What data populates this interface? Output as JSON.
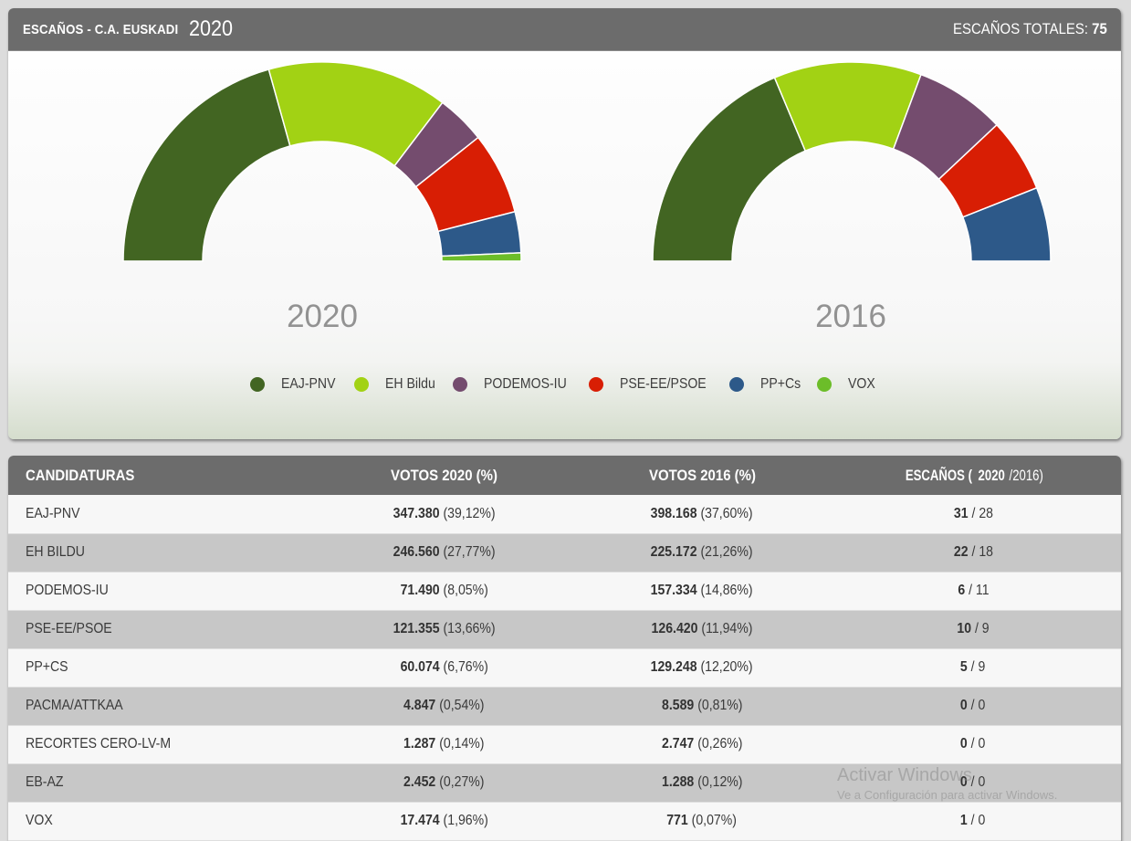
{
  "header": {
    "title": "ESCAÑOS - C.A. EUSKADI",
    "year": "2020",
    "total_label": "ESCAÑOS TOTALES:",
    "total_value": "75"
  },
  "chart_data": [
    {
      "type": "pie",
      "variant": "semicircle-donut",
      "title": "2020",
      "total": 75,
      "categories": [
        "EAJ-PNV",
        "EH Bildu",
        "PODEMOS-IU",
        "PSE-EE/PSOE",
        "PP+Cs",
        "VOX"
      ],
      "values": [
        31,
        22,
        6,
        10,
        5,
        1
      ],
      "colors": [
        "#426522",
        "#a2d214",
        "#744c6e",
        "#d81e04",
        "#2d5989",
        "#6cbd29"
      ]
    },
    {
      "type": "pie",
      "variant": "semicircle-donut",
      "title": "2016",
      "total": 75,
      "categories": [
        "EAJ-PNV",
        "EH Bildu",
        "PODEMOS-IU",
        "PSE-EE/PSOE",
        "PP+Cs",
        "VOX"
      ],
      "values": [
        28,
        18,
        11,
        9,
        9,
        0
      ],
      "colors": [
        "#426522",
        "#a2d214",
        "#744c6e",
        "#d81e04",
        "#2d5989",
        "#6cbd29"
      ]
    }
  ],
  "legend": [
    {
      "label": "EAJ-PNV",
      "color": "#426522"
    },
    {
      "label": "EH Bildu",
      "color": "#a2d214"
    },
    {
      "label": "PODEMOS-IU",
      "color": "#744c6e"
    },
    {
      "label": "PSE-EE/PSOE",
      "color": "#d81e04"
    },
    {
      "label": "PP+Cs",
      "color": "#2d5989"
    },
    {
      "label": "VOX",
      "color": "#6cbd29"
    }
  ],
  "table": {
    "headers": {
      "name": "CANDIDATURAS",
      "votes2020": "VOTOS 2020 (%)",
      "votes2016": "VOTOS 2016 (%)",
      "seats_prefix": "ESCAÑOS (",
      "seats_bold": "2020",
      "seats_suffix": "/2016)"
    },
    "rows": [
      {
        "name": "EAJ-PNV",
        "votes2020": "347.380",
        "pct2020": "(39,12%)",
        "votes2016": "398.168",
        "pct2016": "(37,60%)",
        "seats2020": "31",
        "seats2016": "28"
      },
      {
        "name": "EH BILDU",
        "votes2020": "246.560",
        "pct2020": "(27,77%)",
        "votes2016": "225.172",
        "pct2016": "(21,26%)",
        "seats2020": "22",
        "seats2016": "18"
      },
      {
        "name": "PODEMOS-IU",
        "votes2020": "71.490",
        "pct2020": "(8,05%)",
        "votes2016": "157.334",
        "pct2016": "(14,86%)",
        "seats2020": "6",
        "seats2016": "11"
      },
      {
        "name": "PSE-EE/PSOE",
        "votes2020": "121.355",
        "pct2020": "(13,66%)",
        "votes2016": "126.420",
        "pct2016": "(11,94%)",
        "seats2020": "10",
        "seats2016": "9"
      },
      {
        "name": "PP+CS",
        "votes2020": "60.074",
        "pct2020": "(6,76%)",
        "votes2016": "129.248",
        "pct2016": "(12,20%)",
        "seats2020": "5",
        "seats2016": "9"
      },
      {
        "name": "PACMA/ATTKAA",
        "votes2020": "4.847",
        "pct2020": "(0,54%)",
        "votes2016": "8.589",
        "pct2016": "(0,81%)",
        "seats2020": "0",
        "seats2016": "0"
      },
      {
        "name": "RECORTES CERO-LV-M",
        "votes2020": "1.287",
        "pct2020": "(0,14%)",
        "votes2016": "2.747",
        "pct2016": "(0,26%)",
        "seats2020": "0",
        "seats2016": "0"
      },
      {
        "name": "EB-AZ",
        "votes2020": "2.452",
        "pct2020": "(0,27%)",
        "votes2016": "1.288",
        "pct2016": "(0,12%)",
        "seats2020": "0",
        "seats2016": "0"
      },
      {
        "name": "VOX",
        "votes2020": "17.474",
        "pct2020": "(1,96%)",
        "votes2016": "771",
        "pct2016": "(0,07%)",
        "seats2020": "1",
        "seats2016": "0"
      }
    ]
  },
  "watermark": {
    "title": "Activar Windows",
    "subtitle": "Ve a Configuración para activar Windows."
  }
}
